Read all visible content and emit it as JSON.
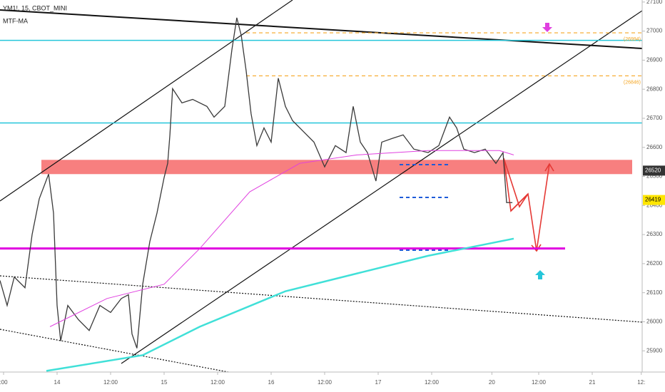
{
  "chart_data": {
    "type": "line",
    "title": "YM1!, 15, CBOT_MINI",
    "indicator": "MTF-MA",
    "xlim": [
      -0.8,
      143.2
    ],
    "xticks": [
      {
        "value": 0,
        "label": ":00"
      },
      {
        "value": 12,
        "label": "14"
      },
      {
        "value": 24,
        "label": "12:00"
      },
      {
        "value": 36,
        "label": "15"
      },
      {
        "value": 48,
        "label": "12:00"
      },
      {
        "value": 60,
        "label": "16"
      },
      {
        "value": 72,
        "label": "12:00"
      },
      {
        "value": 84,
        "label": "17"
      },
      {
        "value": 96,
        "label": "12:00"
      },
      {
        "value": 109.5,
        "label": "20"
      },
      {
        "value": 120,
        "label": "12:00"
      },
      {
        "value": 132,
        "label": "21"
      },
      {
        "value": 143,
        "label": "12:"
      }
    ],
    "ylim": [
      25827,
      27107
    ],
    "yticks": [
      25900,
      26000,
      26100,
      26200,
      26300,
      26400,
      26500,
      26600,
      26700,
      26800,
      26900,
      27000,
      27100
    ],
    "series": [
      {
        "name": "YM1!",
        "color": "#3a3a3a",
        "x": [
          -0.8,
          0.8,
          2.4,
          4.8,
          6.4,
          8,
          10.1,
          11.2,
          12,
          12.8,
          14.4,
          16.8,
          19.2,
          21.6,
          24,
          26.4,
          28,
          28.8,
          29.9,
          31.2,
          32.8,
          34.4,
          36,
          36.8,
          37.3,
          37.9,
          40,
          42.4,
          45.6,
          47.2,
          49.6,
          51.2,
          52.3,
          53.3,
          54.4,
          55.5,
          56.8,
          58.4,
          60,
          61.6,
          63.2,
          64.8,
          67.2,
          69.6,
          72,
          74.4,
          76.8,
          78.4,
          80,
          81.6,
          83.5,
          84.8,
          87.2,
          89.6,
          92,
          95.2,
          97.6,
          100,
          101.6,
          103.2,
          105.6,
          108,
          110.4,
          112,
          112.8,
          114.1
        ],
        "values": [
          26142,
          26056,
          26154,
          26117,
          26300,
          26423,
          26508,
          26374,
          26056,
          25934,
          26056,
          26007,
          25970,
          26056,
          26032,
          26080,
          26093,
          25958,
          25909,
          26129,
          26276,
          26374,
          26496,
          26545,
          26643,
          26802,
          26753,
          26765,
          26741,
          26704,
          26741,
          26936,
          27046,
          26985,
          26863,
          26716,
          26606,
          26667,
          26618,
          26838,
          26741,
          26692,
          26655,
          26618,
          26533,
          26606,
          26582,
          26741,
          26618,
          26582,
          26484,
          26618,
          26631,
          26643,
          26594,
          26582,
          26606,
          26704,
          26667,
          26594,
          26582,
          26594,
          26545,
          26582,
          26410,
          26410
        ]
      },
      {
        "name": "MA",
        "color": "#e040e0",
        "x": [
          10.4,
          23.2,
          36,
          44,
          55.2,
          66.4,
          79.2,
          95.2,
          111.2,
          114.4
        ],
        "values": [
          25983,
          26080,
          26129,
          26252,
          26447,
          26545,
          26574,
          26589,
          26589,
          26574
        ]
      },
      {
        "name": "MTF-MA",
        "color": "#40e0d8",
        "x": [
          9.6,
          31.2,
          44,
          63.2,
          79.2,
          95.2,
          114.4
        ],
        "values": [
          25831,
          25885,
          25983,
          26105,
          26166,
          26227,
          26286
        ]
      }
    ],
    "levels": [
      {
        "value": 26968,
        "color": "#26c6da"
      },
      {
        "value": 26684,
        "color": "#26c6da"
      },
      {
        "value": 26252,
        "color": "#e000e0"
      },
      {
        "value": 26994,
        "color": "#f5a623",
        "label": "(26994)"
      },
      {
        "value": 26846,
        "color": "#f5a623",
        "label": "(26846)"
      }
    ],
    "zone": [
      26508,
      26557
    ],
    "price_labels": [
      {
        "value": 26520,
        "color": "#333333"
      },
      {
        "value": 26419,
        "color": "#ffe600"
      }
    ]
  }
}
